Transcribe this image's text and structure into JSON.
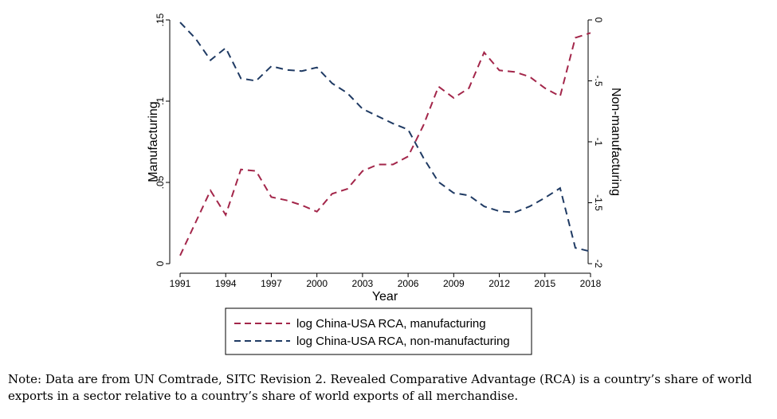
{
  "chart_data": {
    "type": "line",
    "xlabel": "Year",
    "ylabel_left": "Manufacturing",
    "ylabel_right": "Non-manufacturing",
    "x": [
      1991,
      1992,
      1993,
      1994,
      1995,
      1996,
      1997,
      1998,
      1999,
      2000,
      2001,
      2002,
      2003,
      2004,
      2005,
      2006,
      2007,
      2008,
      2009,
      2010,
      2011,
      2012,
      2013,
      2014,
      2015,
      2016,
      2017,
      2018
    ],
    "xlim": [
      1991,
      2018
    ],
    "x_ticks": [
      1991,
      1994,
      1997,
      2000,
      2003,
      2006,
      2009,
      2012,
      2015,
      2018
    ],
    "x_tick_labels": [
      "1991",
      "1994",
      "1997",
      "2000",
      "2003",
      "2006",
      "2009",
      "2012",
      "2015",
      "2018"
    ],
    "ylim_left": [
      0,
      0.15
    ],
    "y_ticks_left": [
      0,
      0.05,
      0.1,
      0.15
    ],
    "y_tick_labels_left": [
      "0",
      ".05",
      ".1",
      ".15"
    ],
    "ylim_right": [
      -2,
      0
    ],
    "y_ticks_right": [
      -2,
      -1.5,
      -1,
      -0.5,
      0
    ],
    "y_tick_labels_right": [
      "-2",
      "-1.5",
      "-1",
      "-.5",
      "0"
    ],
    "series": [
      {
        "name": "log China-USA RCA, manufacturing",
        "axis": "left",
        "color": "#a3264a",
        "style": "dashed",
        "values": [
          0.005,
          0.025,
          0.045,
          0.03,
          0.058,
          0.057,
          0.041,
          0.039,
          0.036,
          0.032,
          0.043,
          0.046,
          0.057,
          0.061,
          0.061,
          0.066,
          0.085,
          0.109,
          0.102,
          0.108,
          0.13,
          0.119,
          0.118,
          0.115,
          0.108,
          0.103,
          0.139,
          0.142
        ]
      },
      {
        "name": "log China-USA RCA, non-manufacturing",
        "axis": "right",
        "color": "#1f3a63",
        "style": "dashed",
        "values": [
          -0.02,
          -0.15,
          -0.33,
          -0.23,
          -0.48,
          -0.5,
          -0.38,
          -0.41,
          -0.42,
          -0.39,
          -0.52,
          -0.6,
          -0.73,
          -0.79,
          -0.85,
          -0.9,
          -1.13,
          -1.33,
          -1.42,
          -1.44,
          -1.53,
          -1.57,
          -1.58,
          -1.53,
          -1.46,
          -1.38,
          -1.87,
          -1.9
        ]
      }
    ],
    "legend_position": "bottom-center"
  },
  "note": "Note: Data are from UN Comtrade, SITC Revision 2. Revealed Comparative Advantage (RCA) is a country’s share of world exports in a sector relative to a country’s share of world exports of all merchandise."
}
